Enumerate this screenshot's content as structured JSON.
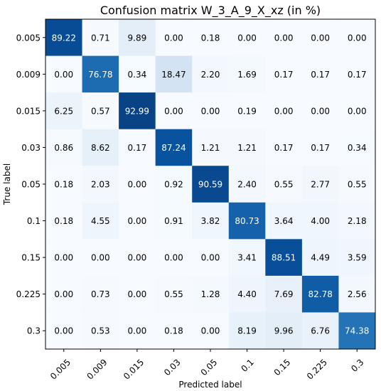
{
  "chart_data": {
    "type": "heatmap",
    "title": "Confusion matrix W_3_A_9_X_xz (in %)",
    "xlabel": "Predicted label",
    "ylabel": "True label",
    "x_categories": [
      "0.005",
      "0.009",
      "0.015",
      "0.03",
      "0.05",
      "0.1",
      "0.15",
      "0.225",
      "0.3"
    ],
    "y_categories": [
      "0.005",
      "0.009",
      "0.015",
      "0.03",
      "0.05",
      "0.1",
      "0.15",
      "0.225",
      "0.3"
    ],
    "values": [
      [
        89.22,
        0.71,
        9.89,
        0.0,
        0.18,
        0.0,
        0.0,
        0.0,
        0.0
      ],
      [
        0.0,
        76.78,
        0.34,
        18.47,
        2.2,
        1.69,
        0.17,
        0.17,
        0.17
      ],
      [
        6.25,
        0.57,
        92.99,
        0.0,
        0.0,
        0.19,
        0.0,
        0.0,
        0.0
      ],
      [
        0.86,
        8.62,
        0.17,
        87.24,
        1.21,
        1.21,
        0.17,
        0.17,
        0.34
      ],
      [
        0.18,
        2.03,
        0.0,
        0.92,
        90.59,
        2.4,
        0.55,
        2.77,
        0.55
      ],
      [
        0.18,
        4.55,
        0.0,
        0.91,
        3.82,
        80.73,
        3.64,
        4.0,
        2.18
      ],
      [
        0.0,
        0.0,
        0.0,
        0.0,
        0.0,
        3.41,
        88.51,
        4.49,
        3.59
      ],
      [
        0.0,
        0.73,
        0.0,
        0.55,
        1.28,
        4.4,
        7.69,
        82.78,
        2.56
      ],
      [
        0.0,
        0.53,
        0.0,
        0.18,
        0.0,
        8.19,
        9.96,
        6.76,
        74.38
      ]
    ],
    "value_format": "two decimals",
    "colormap": "Blues",
    "color_range": [
      0,
      100
    ],
    "colors": {
      "low": "#f7fbff",
      "high": "#08306b"
    },
    "x_tick_rotation_deg": 45,
    "grid": false,
    "legend": "none"
  }
}
